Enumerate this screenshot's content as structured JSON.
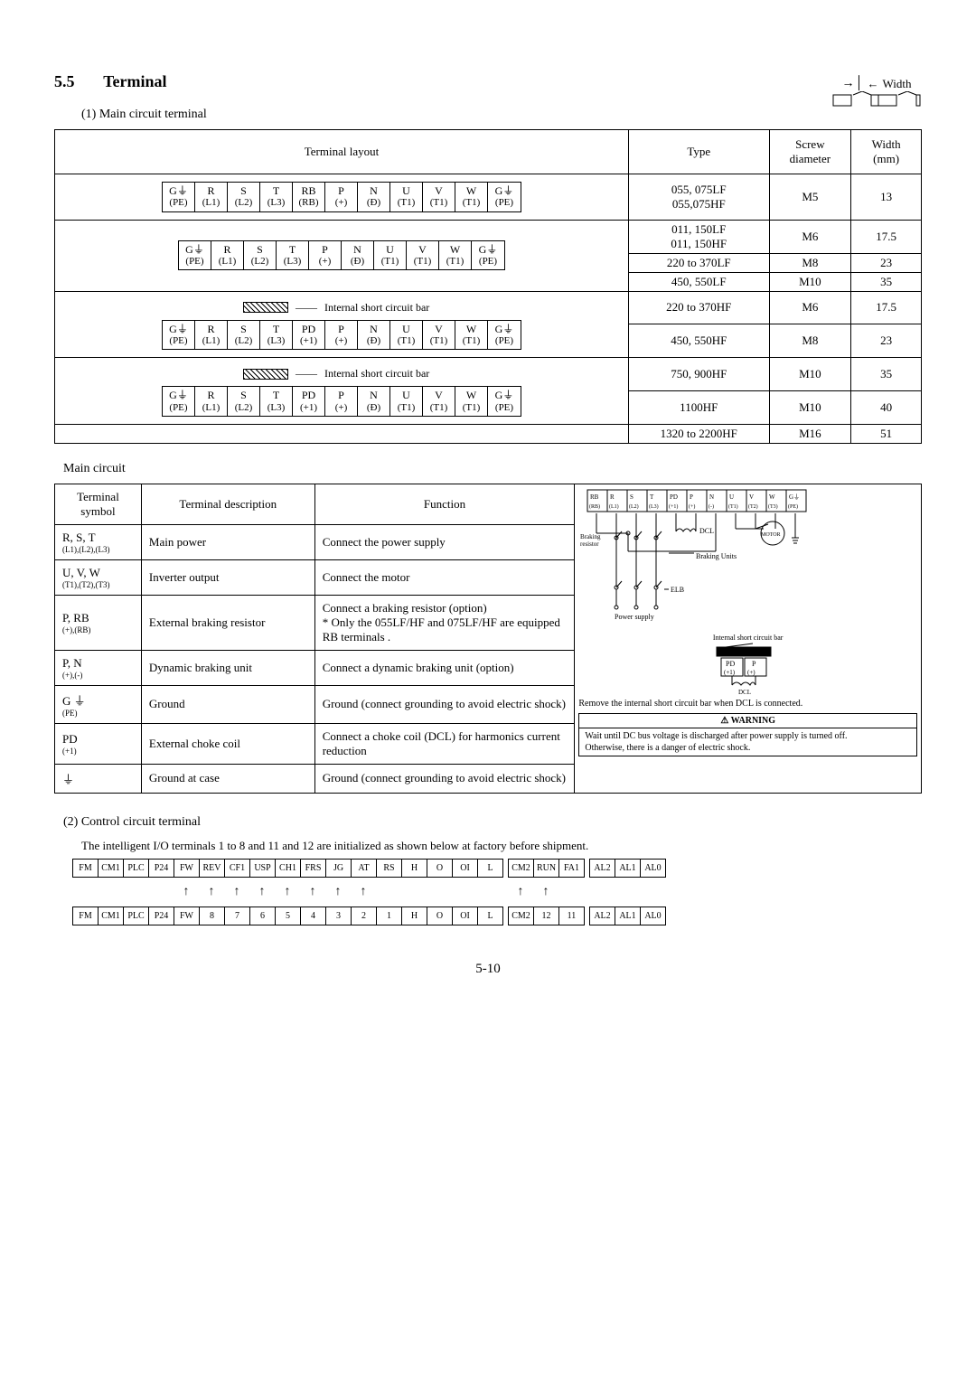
{
  "section": {
    "number": "5.5",
    "title": "Terminal"
  },
  "sub1": "(1) Main circuit terminal",
  "width_label": "Width",
  "layout_table": {
    "headers": {
      "layout": "Terminal layout",
      "type": "Type",
      "screw": "Screw\ndiameter",
      "width": "Width\n(mm)"
    },
    "rows": [
      {
        "type": "055, 075LF\n055,075HF",
        "screw": "M5",
        "width": "13"
      },
      {
        "type": "011, 150LF\n011, 150HF",
        "screw": "M6",
        "width": "17.5"
      },
      {
        "type": "220 to 370LF",
        "screw": "M8",
        "width": "23"
      },
      {
        "type": "450, 550LF",
        "screw": "M10",
        "width": "35"
      },
      {
        "type": "220 to 370HF",
        "screw": "M6",
        "width": "17.5"
      },
      {
        "type": "450, 550HF",
        "screw": "M8",
        "width": "23"
      },
      {
        "type": "750, 900HF",
        "screw": "M10",
        "width": "35"
      },
      {
        "type": "1100HF",
        "screw": "M10",
        "width": "40"
      },
      {
        "type": "1320 to 2200HF",
        "screw": "M16",
        "width": "51"
      }
    ],
    "layout1": [
      {
        "t": "G⏚",
        "s": "(PE)"
      },
      {
        "t": "R",
        "s": "(L1)"
      },
      {
        "t": "S",
        "s": "(L2)"
      },
      {
        "t": "T",
        "s": "(L3)"
      },
      {
        "t": "RB",
        "s": "(RB)"
      },
      {
        "t": "P",
        "s": "(+)"
      },
      {
        "t": "N",
        "s": "(Đ)"
      },
      {
        "t": "U",
        "s": "(T1)"
      },
      {
        "t": "V",
        "s": "(T1)"
      },
      {
        "t": "W",
        "s": "(T1)"
      },
      {
        "t": "G⏚",
        "s": "(PE)"
      }
    ],
    "layout2": [
      {
        "t": "G⏚",
        "s": "(PE)"
      },
      {
        "t": "R",
        "s": "(L1)"
      },
      {
        "t": "S",
        "s": "(L2)"
      },
      {
        "t": "T",
        "s": "(L3)"
      },
      {
        "t": "P",
        "s": "(+)"
      },
      {
        "t": "N",
        "s": "(Đ)"
      },
      {
        "t": "U",
        "s": "(T1)"
      },
      {
        "t": "V",
        "s": "(T1)"
      },
      {
        "t": "W",
        "s": "(T1)"
      },
      {
        "t": "G⏚",
        "s": "(PE)"
      }
    ],
    "layout3": [
      {
        "t": "G⏚",
        "s": "(PE)"
      },
      {
        "t": "R",
        "s": "(L1)"
      },
      {
        "t": "S",
        "s": "(L2)"
      },
      {
        "t": "T",
        "s": "(L3)"
      },
      {
        "t": "PD",
        "s": "(+1)"
      },
      {
        "t": "P",
        "s": "(+)"
      },
      {
        "t": "N",
        "s": "(Đ)"
      },
      {
        "t": "U",
        "s": "(T1)"
      },
      {
        "t": "V",
        "s": "(T1)"
      },
      {
        "t": "W",
        "s": "(T1)"
      },
      {
        "t": "G⏚",
        "s": "(PE)"
      }
    ],
    "shortbar_label": "Internal short circuit bar"
  },
  "main_circuit_label": "Main circuit",
  "desc_table": {
    "headers": {
      "symbol": "Terminal\nsymbol",
      "desc": "Terminal description",
      "func": "Function"
    },
    "rows": [
      {
        "sym": "R, S, T",
        "sub": "(L1),(L2),(L3)",
        "desc": "Main power",
        "func": "Connect the power supply"
      },
      {
        "sym": "U, V, W",
        "sub": "(T1),(T2),(T3)",
        "desc": "Inverter output",
        "func": "Connect the motor"
      },
      {
        "sym": "P, RB",
        "sub": "(+),(RB)",
        "desc": "External braking resistor",
        "func": "Connect a braking resistor (option)\n* Only the 055LF/HF and 075LF/HF are equipped RB terminals ."
      },
      {
        "sym": "P, N",
        "sub": "(+),(-)",
        "desc": "Dynamic braking unit",
        "func": "Connect a dynamic braking unit (option)"
      },
      {
        "sym": "G ⏚",
        "sub": "(PE)",
        "desc": "Ground",
        "func": "Ground (connect grounding to avoid electric shock)"
      },
      {
        "sym": "PD",
        "sub": "(+1)",
        "desc": "External choke coil",
        "func": "Connect a choke coil (DCL) for harmonics current reduction"
      },
      {
        "sym": "⏚",
        "sub": "",
        "desc": "Ground at case",
        "func": "Ground (connect grounding to avoid electric shock)"
      }
    ],
    "diagram": {
      "terms": [
        "RB",
        "R",
        "S",
        "T",
        "PD",
        "P",
        "N",
        "U",
        "V",
        "W",
        "G⏚"
      ],
      "subs": [
        "(RB)",
        "(L1)",
        "(L2)",
        "(L3)",
        "(+1)",
        "(+)",
        "(-)",
        "(T1)",
        "(T2)",
        "(T3)",
        "(PE)"
      ],
      "braking_resistor": "Braking\nresistor",
      "dcl": "DCL",
      "motor": "MOTOR",
      "braking_units": "Braking Units",
      "elb": "ELB",
      "power_supply": "Power supply",
      "shortbar_title": "Internal short circuit bar",
      "pd": "PD",
      "pd_sub": "(+1)",
      "p": "P",
      "p_sub": "(+)",
      "dcl2": "DCL",
      "remove_note": "Remove the internal short circuit bar when DCL is connected.",
      "warning_title": "WARNING",
      "warning_body": "Wait until DC bus voltage is discharged after power supply is turned off.\nOtherwise, there is a danger of electric shock."
    }
  },
  "sub2": "(2) Control circuit terminal",
  "ctrl_note": "The intelligent I/O terminals 1 to 8 and 11 and 12 are initialized as shown below at factory before shipment.",
  "ctrl_table1": [
    "FM",
    "CM1",
    "PLC",
    "P24",
    "FW",
    "REV",
    "CF1",
    "USP",
    "CH1",
    "FRS",
    "JG",
    "AT",
    "RS",
    "H",
    "O",
    "OI",
    "L",
    "CM2",
    "RUN",
    "FA1",
    "AL2",
    "AL1",
    "AL0"
  ],
  "ctrl_arrows": [
    "",
    "",
    "",
    "",
    "↑",
    "↑",
    "↑",
    "↑",
    "↑",
    "↑",
    "↑",
    "↑",
    "",
    "",
    "",
    "",
    "",
    "↑",
    "↑",
    "",
    "",
    "",
    ""
  ],
  "ctrl_table2": [
    "FM",
    "CM1",
    "PLC",
    "P24",
    "FW",
    "8",
    "7",
    "6",
    "5",
    "4",
    "3",
    "2",
    "1",
    "H",
    "O",
    "OI",
    "L",
    "CM2",
    "12",
    "11",
    "AL2",
    "AL1",
    "AL0"
  ],
  "page_num": "5-10"
}
